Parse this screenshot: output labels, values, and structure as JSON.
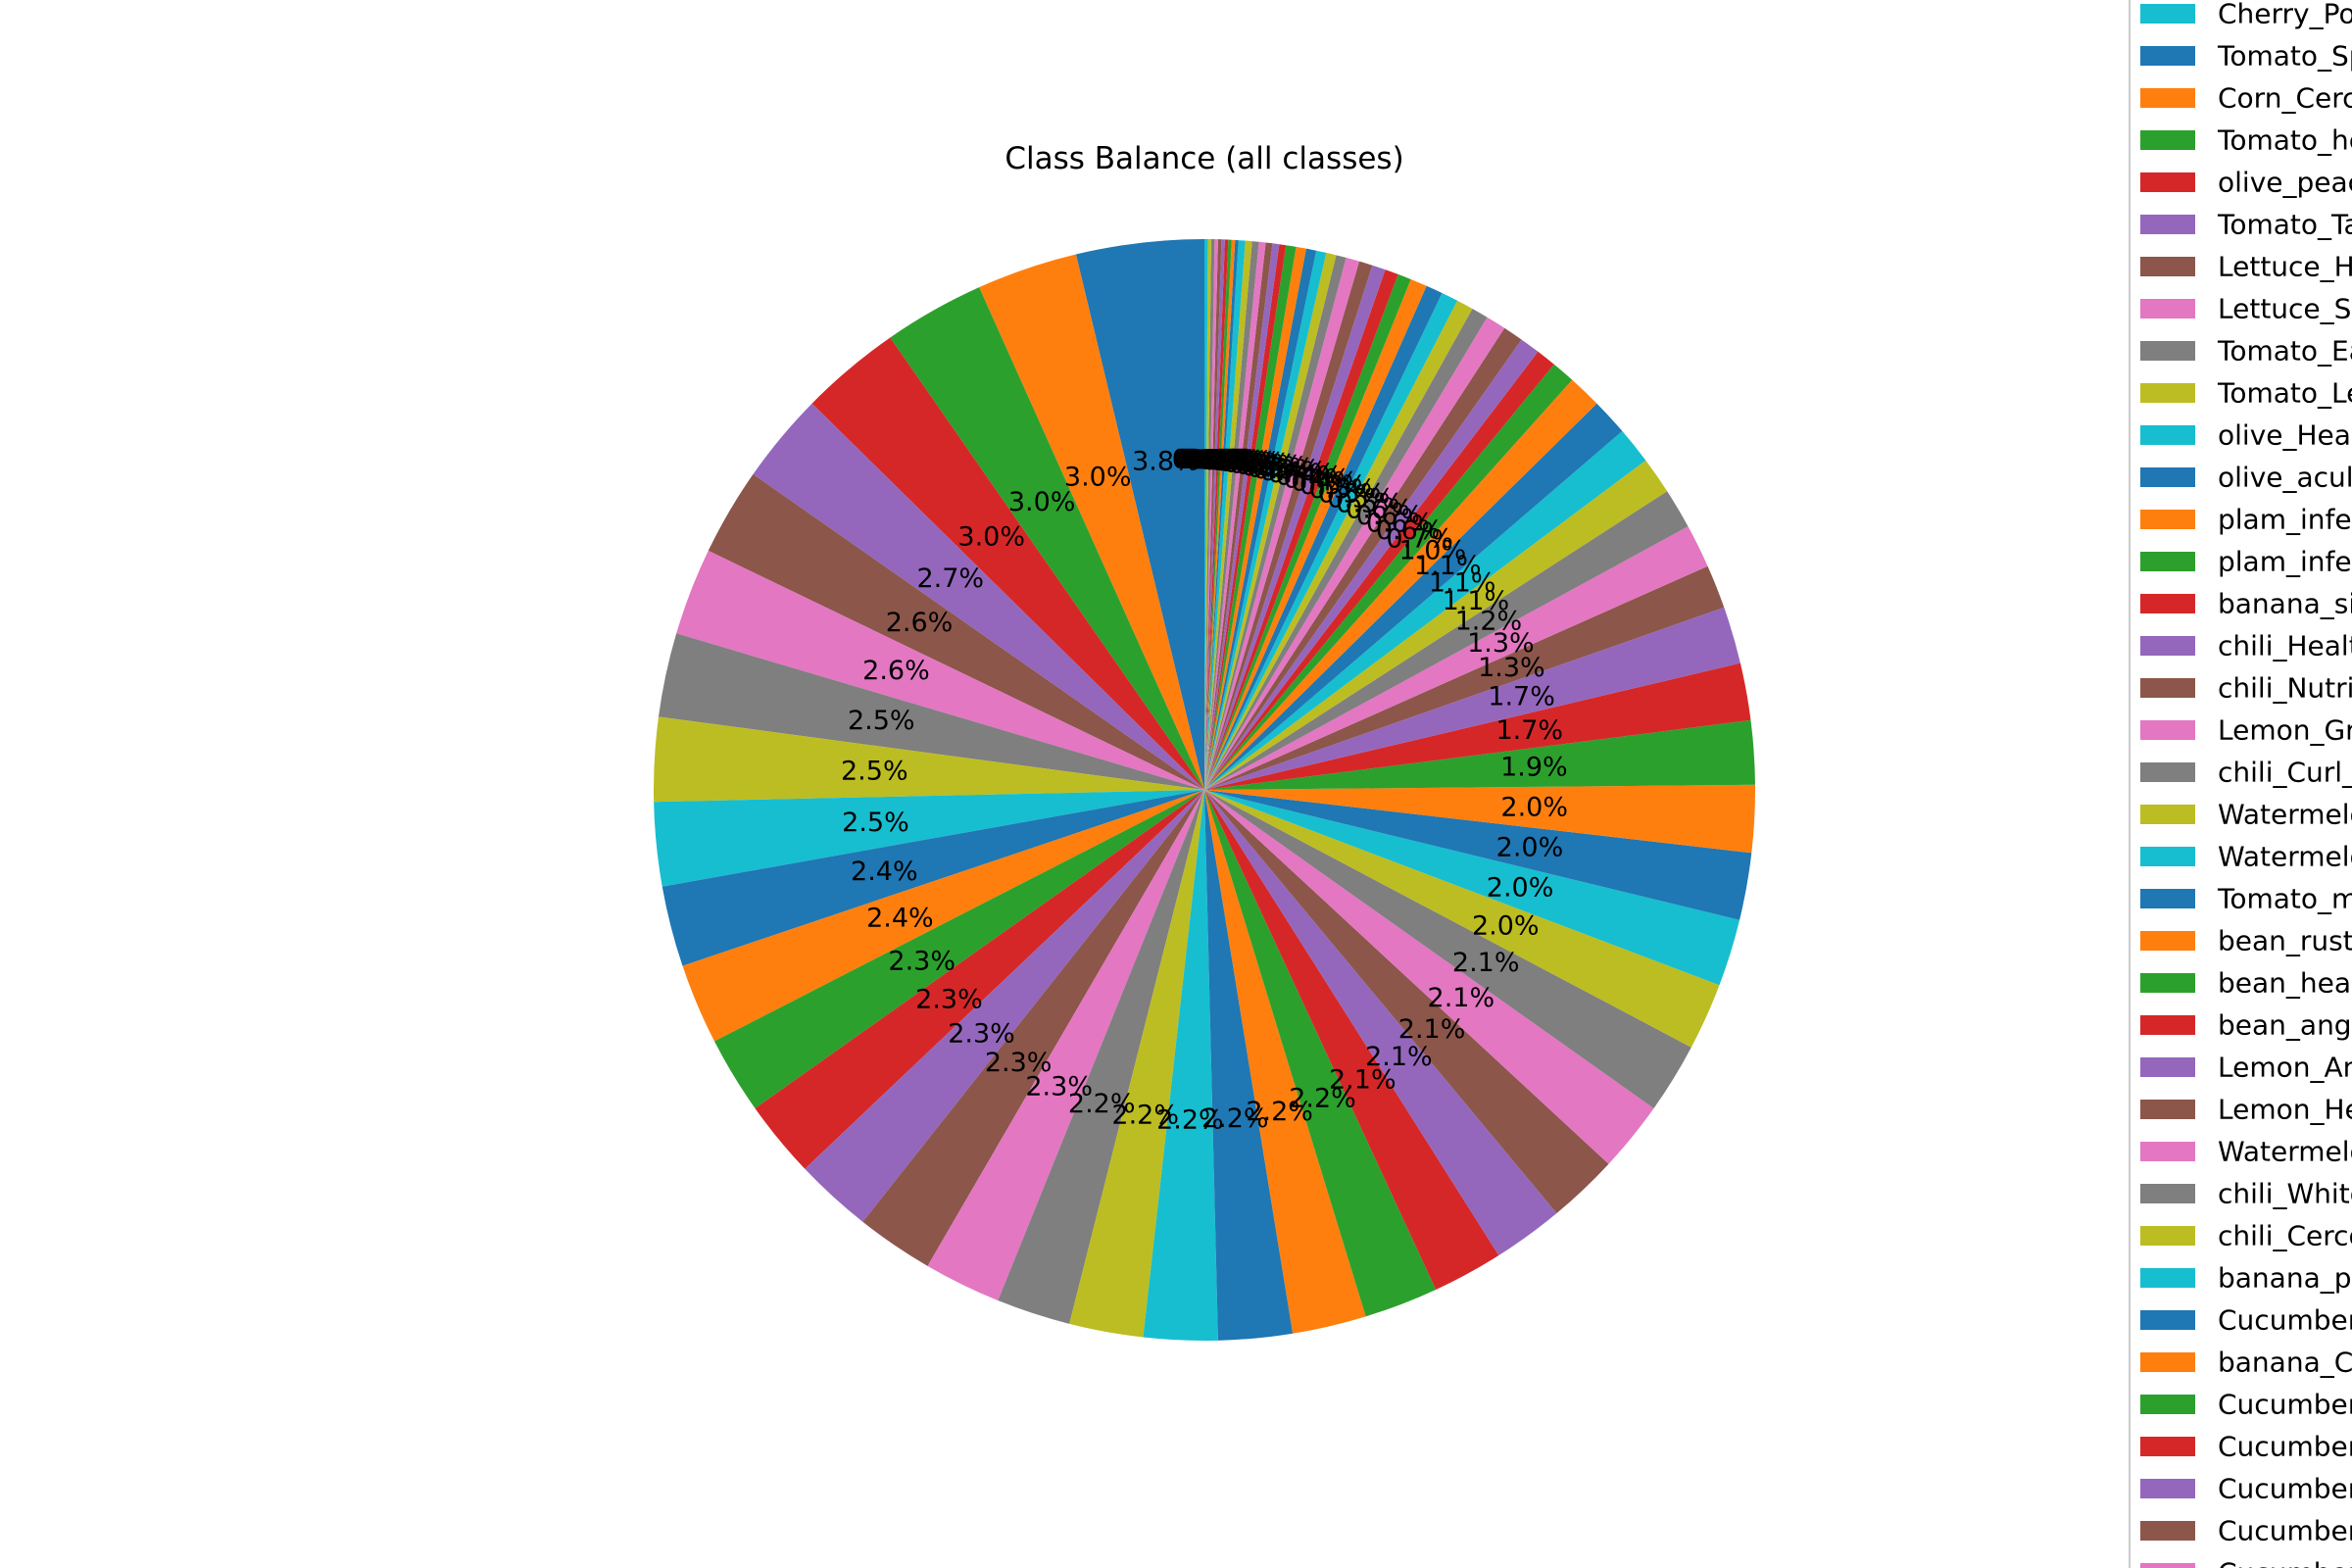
{
  "chart_data": {
    "type": "pie",
    "title": "Class Balance (all classes)",
    "slices": [
      {
        "label": "",
        "value": 3.8
      },
      {
        "label": "",
        "value": 3.0
      },
      {
        "label": "",
        "value": 3.0
      },
      {
        "label": "",
        "value": 3.0
      },
      {
        "label": "",
        "value": 2.7
      },
      {
        "label": "",
        "value": 2.6
      },
      {
        "label": "",
        "value": 2.6
      },
      {
        "label": "",
        "value": 2.5
      },
      {
        "label": "",
        "value": 2.5
      },
      {
        "label": "",
        "value": 2.5
      },
      {
        "label": "",
        "value": 2.4
      },
      {
        "label": "",
        "value": 2.4
      },
      {
        "label": "",
        "value": 2.3
      },
      {
        "label": "",
        "value": 2.3
      },
      {
        "label": "",
        "value": 2.3
      },
      {
        "label": "",
        "value": 2.3
      },
      {
        "label": "",
        "value": 2.3
      },
      {
        "label": "",
        "value": 2.2
      },
      {
        "label": "",
        "value": 2.2
      },
      {
        "label": "",
        "value": 2.2
      },
      {
        "label": "",
        "value": 2.2
      },
      {
        "label": "",
        "value": 2.2
      },
      {
        "label": "",
        "value": 2.2
      },
      {
        "label": "",
        "value": 2.1
      },
      {
        "label": "",
        "value": 2.1
      },
      {
        "label": "",
        "value": 2.1
      },
      {
        "label": "",
        "value": 2.1
      },
      {
        "label": "",
        "value": 2.1
      },
      {
        "label": "",
        "value": 2.0
      },
      {
        "label": "",
        "value": 2.0
      },
      {
        "label": "",
        "value": 2.0
      },
      {
        "label": "",
        "value": 2.0
      },
      {
        "label": "",
        "value": 1.9
      },
      {
        "label": "",
        "value": 1.7
      },
      {
        "label": "",
        "value": 1.7
      },
      {
        "label": "",
        "value": 1.3
      },
      {
        "label": "",
        "value": 1.3
      },
      {
        "label": "",
        "value": 1.2
      },
      {
        "label": "",
        "value": 1.1
      },
      {
        "label": "",
        "value": 1.1
      },
      {
        "label": "",
        "value": 1.1
      },
      {
        "label": "",
        "value": 1.0
      },
      {
        "label": "",
        "value": 0.7
      },
      {
        "label": "",
        "value": 0.6
      },
      {
        "label": "",
        "value": 0.6
      },
      {
        "label": "",
        "value": 0.6
      },
      {
        "label": "",
        "value": 0.6
      },
      {
        "label": "",
        "value": 0.5
      },
      {
        "label": "",
        "value": 0.5
      },
      {
        "label": "",
        "value": 0.5
      },
      {
        "label": "",
        "value": 0.5
      },
      {
        "label": "",
        "value": 0.5
      },
      {
        "label": "",
        "value": 0.4
      },
      {
        "label": "",
        "value": 0.4
      },
      {
        "label": "",
        "value": 0.4
      },
      {
        "label": "",
        "value": 0.4
      },
      {
        "label": "",
        "value": 0.4
      },
      {
        "label": "",
        "value": 0.3
      },
      {
        "label": "",
        "value": 0.3
      },
      {
        "label": "",
        "value": 0.3
      },
      {
        "label": "",
        "value": 0.3
      },
      {
        "label": "",
        "value": 0.3
      },
      {
        "label": "",
        "value": 0.3
      },
      {
        "label": "",
        "value": 0.2
      },
      {
        "label": "",
        "value": 0.2
      },
      {
        "label": "",
        "value": 0.2
      },
      {
        "label": "",
        "value": 0.2
      },
      {
        "label": "",
        "value": 0.2
      },
      {
        "label": "",
        "value": 0.2
      },
      {
        "label": "",
        "value": 0.2
      },
      {
        "label": "",
        "value": 0.1
      },
      {
        "label": "",
        "value": 0.1
      },
      {
        "label": "",
        "value": 0.1
      },
      {
        "label": "",
        "value": 0.1
      },
      {
        "label": "",
        "value": 0.1
      },
      {
        "label": "",
        "value": 0.1
      },
      {
        "label": "",
        "value": 0.1
      },
      {
        "label": "",
        "value": 0.1
      },
      {
        "label": "",
        "value": 0.1
      },
      {
        "label": "",
        "value": 0.1
      }
    ],
    "start_angle_deg": 90,
    "direction": "counterclockwise",
    "colors": [
      "#1f77b4",
      "#ff7f0e",
      "#2ca02c",
      "#d62728",
      "#9467bd",
      "#8c564b",
      "#e377c2",
      "#7f7f7f",
      "#bcbd22",
      "#17becf"
    ],
    "label_format": "{value}%",
    "legend": {
      "placement": "right, clipped at figure edge",
      "entries": [
        {
          "text": "Cherry_Po",
          "color": "#17becf"
        },
        {
          "text": "Tomato_Sp",
          "color": "#1f77b4"
        },
        {
          "text": "Corn_Cerc",
          "color": "#ff7f0e"
        },
        {
          "text": "Tomato_he",
          "color": "#2ca02c"
        },
        {
          "text": "olive_peac",
          "color": "#d62728"
        },
        {
          "text": "Tomato_Ta",
          "color": "#9467bd"
        },
        {
          "text": "Lettuce_He",
          "color": "#8c564b"
        },
        {
          "text": "Lettuce_Sh",
          "color": "#e377c2"
        },
        {
          "text": "Tomato_Ea",
          "color": "#7f7f7f"
        },
        {
          "text": "Tomato_Le",
          "color": "#bcbd22"
        },
        {
          "text": "olive_Heal",
          "color": "#17becf"
        },
        {
          "text": "olive_acul",
          "color": "#1f77b4"
        },
        {
          "text": "plam_infec",
          "color": "#ff7f0e"
        },
        {
          "text": "plam_infec",
          "color": "#2ca02c"
        },
        {
          "text": "banana_si",
          "color": "#d62728"
        },
        {
          "text": "chili_Healt",
          "color": "#9467bd"
        },
        {
          "text": "chili_Nutri",
          "color": "#8c564b"
        },
        {
          "text": "Lemon_Gr",
          "color": "#e377c2"
        },
        {
          "text": "chili_Curl_",
          "color": "#7f7f7f"
        },
        {
          "text": "Watermelo",
          "color": "#bcbd22"
        },
        {
          "text": "Watermelo",
          "color": "#17becf"
        },
        {
          "text": "Tomato_m",
          "color": "#1f77b4"
        },
        {
          "text": "bean_rust",
          "color": "#ff7f0e"
        },
        {
          "text": "bean_heal",
          "color": "#2ca02c"
        },
        {
          "text": "bean_angu",
          "color": "#d62728"
        },
        {
          "text": "Lemon_An",
          "color": "#9467bd"
        },
        {
          "text": "Lemon_He",
          "color": "#8c564b"
        },
        {
          "text": "Watermelo",
          "color": "#e377c2"
        },
        {
          "text": "chili_White",
          "color": "#7f7f7f"
        },
        {
          "text": "chili_Cerco",
          "color": "#bcbd22"
        },
        {
          "text": "banana_po",
          "color": "#17becf"
        },
        {
          "text": "Cucumber",
          "color": "#1f77b4"
        },
        {
          "text": "banana_C",
          "color": "#ff7f0e"
        },
        {
          "text": "Cucumber",
          "color": "#2ca02c"
        },
        {
          "text": "Cucumber",
          "color": "#d62728"
        },
        {
          "text": "Cucumber",
          "color": "#9467bd"
        },
        {
          "text": "Cucumber",
          "color": "#8c564b"
        },
        {
          "text": "Cucumber",
          "color": "#e377c2"
        }
      ]
    }
  }
}
